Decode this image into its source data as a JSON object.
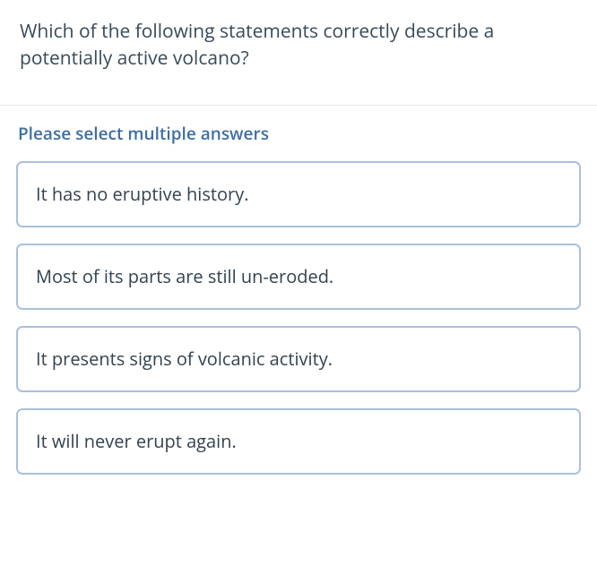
{
  "question": {
    "text": "Which of the following statements correctly describe a potentially active volcano?"
  },
  "instruction": "Please select multiple answers",
  "options": [
    {
      "text": "It has no eruptive history."
    },
    {
      "text": "Most of its parts are still un-eroded."
    },
    {
      "text": "It presents signs of volcanic activity."
    },
    {
      "text": "It will never erupt again."
    }
  ],
  "style": {
    "question_color": "#394a5a",
    "instruction_color": "#3e6fa3",
    "option_border_color": "#a9c1da",
    "option_text_color": "#33424f",
    "divider_color": "#e3e7ec",
    "background_color": "#ffffff",
    "question_fontsize": 21,
    "instruction_fontsize": 19,
    "option_fontsize": 20,
    "border_radius": 7
  }
}
